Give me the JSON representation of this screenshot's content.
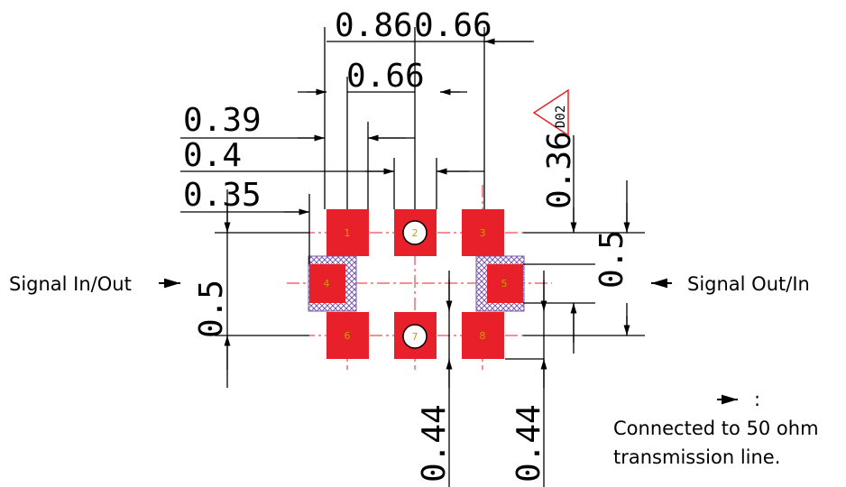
{
  "dimensions": {
    "top_left": "0.86",
    "top_right": "0.66",
    "middle_top": "0.66",
    "left_a": "0.39",
    "left_b": "0.4",
    "left_c": "0.35",
    "right_vertical": "0.36",
    "right_pad": "0.5",
    "left_pad": "0.5",
    "bottom_left": "0.44",
    "bottom_right": "0.44"
  },
  "revision_tag": "D02",
  "signal_left": "Signal In/Out",
  "signal_right": "Signal Out/In",
  "legend": {
    "symbol": "→ :",
    "line1": "Connected to 50 ohm",
    "line2": "transmission line."
  },
  "pads": [
    {
      "label": "1"
    },
    {
      "label": "2"
    },
    {
      "label": "3"
    },
    {
      "label": "4"
    },
    {
      "label": "5"
    },
    {
      "label": "6"
    },
    {
      "label": "7"
    },
    {
      "label": "8"
    }
  ],
  "colors": {
    "pad": "#e8202a",
    "center_line": "#e8202a",
    "keepout": "#7a5aa8",
    "pad_label": "#c8a000",
    "revision": "#e8202a"
  }
}
